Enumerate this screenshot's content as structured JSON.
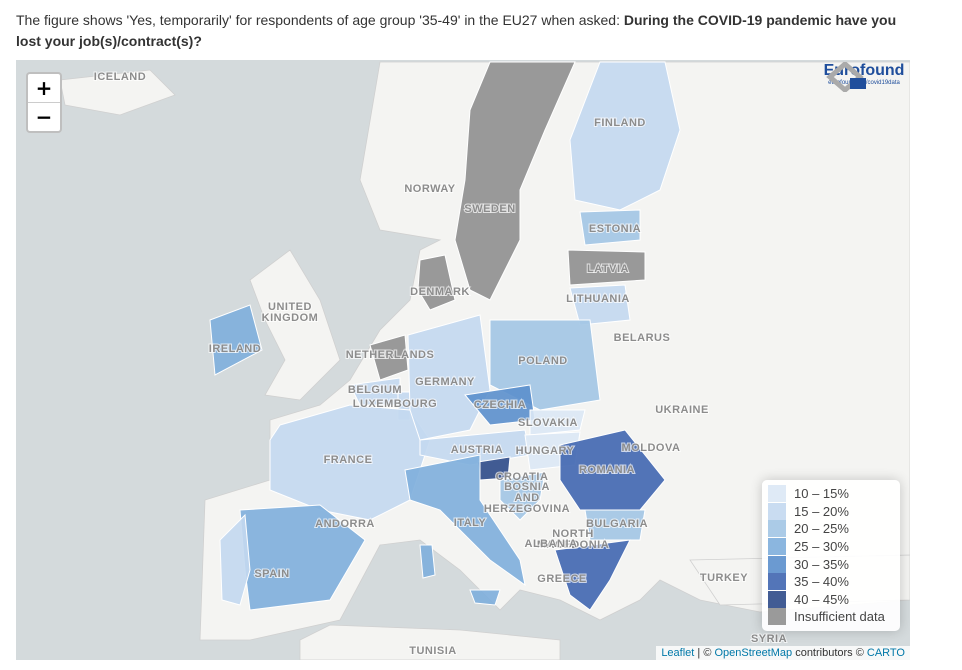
{
  "intro": {
    "text": "The figure shows 'Yes, temporarily' for respondents of age group '35-49' in the EU27 when asked: ",
    "question": "During the COVID-19 pandemic have you lost your job(s)/contract(s)?"
  },
  "zoom": {
    "in": "+",
    "out": "−"
  },
  "logo": {
    "name": "Eurofound",
    "link": "eurofound.link/covid19data"
  },
  "legend": [
    {
      "label": "10 – 15%",
      "color": "#dce8f5"
    },
    {
      "label": "15 – 20%",
      "color": "#c3d8ef"
    },
    {
      "label": "20 – 25%",
      "color": "#a2c5e4"
    },
    {
      "label": "25 – 30%",
      "color": "#7eaedb"
    },
    {
      "label": "30 – 35%",
      "color": "#5b8fcc"
    },
    {
      "label": "35 – 40%",
      "color": "#4066b0"
    },
    {
      "label": "40 – 45%",
      "color": "#2e4a88"
    },
    {
      "label": "Insufficient data",
      "color": "#8f8f8f"
    }
  ],
  "regions": [
    {
      "name": "SWEDEN",
      "class": 7
    },
    {
      "name": "FINLAND",
      "class": 1
    },
    {
      "name": "ESTONIA",
      "class": 2
    },
    {
      "name": "LATVIA",
      "class": 7
    },
    {
      "name": "LITHUANIA",
      "class": 1
    },
    {
      "name": "DENMARK",
      "class": 7
    },
    {
      "name": "IRELAND",
      "class": 3
    },
    {
      "name": "NETHERLANDS",
      "class": 7
    },
    {
      "name": "BELGIUM",
      "class": 1
    },
    {
      "name": "LUXEMBOURG",
      "class": 1
    },
    {
      "name": "FRANCE",
      "class": 1
    },
    {
      "name": "GERMANY",
      "class": 1
    },
    {
      "name": "POLAND",
      "class": 2
    },
    {
      "name": "CZECHIA",
      "class": 4
    },
    {
      "name": "SLOVAKIA",
      "class": 0
    },
    {
      "name": "AUSTRIA",
      "class": 1
    },
    {
      "name": "HUNGARY",
      "class": 0
    },
    {
      "name": "ROMANIA",
      "class": 5
    },
    {
      "name": "SLOVENIA",
      "class": 6
    },
    {
      "name": "CROATIA",
      "class": 2
    },
    {
      "name": "ITALY",
      "class": 3
    },
    {
      "name": "SPAIN",
      "class": 3
    },
    {
      "name": "PORTUGAL",
      "class": 1
    },
    {
      "name": "BULGARIA",
      "class": 2
    },
    {
      "name": "GREECE",
      "class": 5
    }
  ],
  "labels": [
    [
      "ICELAND"
    ],
    [
      "NORWAY"
    ],
    [
      "SWEDEN"
    ],
    [
      "FINLAND"
    ],
    [
      "ESTONIA"
    ],
    [
      "LATVIA"
    ],
    [
      "LITHUANIA"
    ],
    [
      "DENMARK"
    ],
    [
      "UNITED",
      "KINGDOM"
    ],
    [
      "IRELAND"
    ],
    [
      "NETHERLANDS"
    ],
    [
      "BELGIUM"
    ],
    [
      "LUXEMBOURG"
    ],
    [
      "GERMANY"
    ],
    [
      "POLAND"
    ],
    [
      "CZECHIA"
    ],
    [
      "SLOVAKIA"
    ],
    [
      "AUSTRIA"
    ],
    [
      "HUNGARY"
    ],
    [
      "FRANCE"
    ],
    [
      "ROMANIA"
    ],
    [
      "MOLDOVA"
    ],
    [
      "UKRAINE"
    ],
    [
      "BELARUS"
    ],
    [
      "BOSNIA",
      "AND",
      "HERZEGOVINA"
    ],
    [
      "CROATIA"
    ],
    [
      "ITALY"
    ],
    [
      "ANDORRA"
    ],
    [
      "SPAIN"
    ],
    [
      "BULGARIA"
    ],
    [
      "NORTH",
      "MACEDONIA"
    ],
    [
      "ALBANIA"
    ],
    [
      "GREECE"
    ],
    [
      "TURKEY"
    ],
    [
      "SYRIA"
    ],
    [
      "TUNISIA"
    ]
  ],
  "attribution": {
    "leaflet": "Leaflet",
    "sep": " | © ",
    "osm": "OpenStreetMap",
    "mid": " contributors © ",
    "carto": "CARTO"
  }
}
